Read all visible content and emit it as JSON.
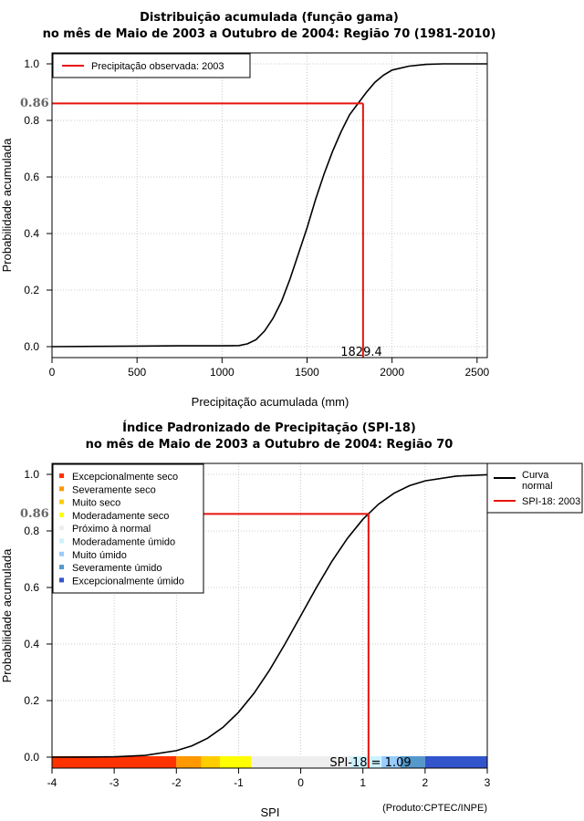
{
  "chart_data": [
    {
      "type": "line",
      "title_line1": "Distribuição acumulada (função gama)",
      "title_line2": "no mês de Maio de 2003 a Outubro de 2004: Região 70 (1981-2010)",
      "xlabel": "Precipitação acumulada (mm)",
      "ylabel": "Probabilidade acumulada",
      "xlim": [
        0,
        2560
      ],
      "ylim": [
        0,
        1
      ],
      "xticks": [
        0,
        500,
        1000,
        1500,
        2000,
        2500
      ],
      "xtick_labels": [
        "0",
        "500",
        "1000",
        "1500",
        "2000",
        "2500"
      ],
      "yticks": [
        0.0,
        0.2,
        0.4,
        0.6,
        0.8,
        1.0
      ],
      "ytick_labels": [
        "0.0",
        "0.2",
        "0.4",
        "0.6",
        "0.8",
        "1.0"
      ],
      "grid": true,
      "curve": {
        "x": [
          0,
          250,
          500,
          750,
          1000,
          1100,
          1150,
          1200,
          1250,
          1300,
          1350,
          1400,
          1450,
          1500,
          1550,
          1600,
          1650,
          1700,
          1750,
          1800,
          1850,
          1900,
          1950,
          2000,
          2100,
          2200,
          2300,
          2400,
          2560
        ],
        "y": [
          0.0,
          0.001,
          0.002,
          0.003,
          0.003,
          0.004,
          0.01,
          0.025,
          0.055,
          0.1,
          0.16,
          0.24,
          0.33,
          0.42,
          0.52,
          0.61,
          0.69,
          0.76,
          0.82,
          0.86,
          0.9,
          0.935,
          0.96,
          0.978,
          0.992,
          0.998,
          1.0,
          1.0,
          1.0
        ]
      },
      "observed": {
        "x": 1829.4,
        "y": 0.86,
        "x_label": "1829.4",
        "y_label": "0.86"
      },
      "legend": [
        {
          "label": "Precipitação observada: 2003",
          "color": "#e8130c"
        }
      ]
    },
    {
      "type": "line",
      "title_line1": "Índice Padronizado de Precipitação (SPI-18)",
      "title_line2": "no mês de Maio de 2003 a Outubro de 2004: Região 70",
      "xlabel": "SPI",
      "ylabel": "Probabilidade acumulada",
      "xlim": [
        -4,
        3
      ],
      "ylim": [
        0,
        1
      ],
      "xticks": [
        -4,
        -3,
        -2,
        -1,
        0,
        1,
        2,
        3
      ],
      "xtick_labels": [
        "-4",
        "-3",
        "-2",
        "-1",
        "0",
        "1",
        "2",
        "3"
      ],
      "yticks": [
        0.0,
        0.2,
        0.4,
        0.6,
        0.8,
        1.0
      ],
      "ytick_labels": [
        "0.0",
        "0.2",
        "0.4",
        "0.6",
        "0.8",
        "1.0"
      ],
      "grid": true,
      "curve": {
        "x": [
          -4.0,
          -3.5,
          -3.0,
          -2.5,
          -2.0,
          -1.75,
          -1.5,
          -1.25,
          -1.0,
          -0.75,
          -0.5,
          -0.25,
          0.0,
          0.25,
          0.5,
          0.75,
          1.0,
          1.25,
          1.5,
          1.75,
          2.0,
          2.5,
          3.0
        ],
        "y": [
          3e-05,
          0.0002,
          0.0013,
          0.0062,
          0.0228,
          0.04,
          0.0668,
          0.1056,
          0.1587,
          0.2266,
          0.3085,
          0.4013,
          0.5,
          0.5987,
          0.6915,
          0.7734,
          0.8413,
          0.8944,
          0.9332,
          0.96,
          0.9772,
          0.9938,
          0.9987
        ]
      },
      "observed": {
        "x": 1.09,
        "y": 0.86,
        "y_label": "0.86"
      },
      "annotation": "SPI-18 = 1.09",
      "footer": "(Produto:CPTEC/INPE)",
      "legend": [
        {
          "label": "Curva normal",
          "color": "#000000"
        },
        {
          "label": "SPI-18: 2003",
          "color": "#e8130c"
        }
      ],
      "category_legend": [
        {
          "label": "Excepcionalmente seco",
          "color": "#ff3300"
        },
        {
          "label": "Severamente seco",
          "color": "#ff9900"
        },
        {
          "label": "Muito seco",
          "color": "#ffcc00"
        },
        {
          "label": "Moderadamente seco",
          "color": "#ffff00"
        },
        {
          "label": "Próximo à normal",
          "color": "#eeeeee"
        },
        {
          "label": "Moderadamente úmido",
          "color": "#ccf2ff"
        },
        {
          "label": "Muito úmido",
          "color": "#99ccff"
        },
        {
          "label": "Severamente úmido",
          "color": "#5599cc"
        },
        {
          "label": "Excepcionalmente úmido",
          "color": "#3355cc"
        }
      ],
      "category_band": [
        {
          "from": -4.0,
          "to": -2.0,
          "color": "#ff3300"
        },
        {
          "from": -2.0,
          "to": -1.6,
          "color": "#ff9900"
        },
        {
          "from": -1.6,
          "to": -1.3,
          "color": "#ffcc00"
        },
        {
          "from": -1.3,
          "to": -0.8,
          "color": "#ffff00"
        },
        {
          "from": -0.8,
          "to": 0.8,
          "color": "#eeeeee"
        },
        {
          "from": 0.8,
          "to": 1.3,
          "color": "#ccf2ff"
        },
        {
          "from": 1.3,
          "to": 1.6,
          "color": "#99ccff"
        },
        {
          "from": 1.6,
          "to": 2.0,
          "color": "#5599cc"
        },
        {
          "from": 2.0,
          "to": 3.0,
          "color": "#3355cc"
        }
      ]
    }
  ]
}
